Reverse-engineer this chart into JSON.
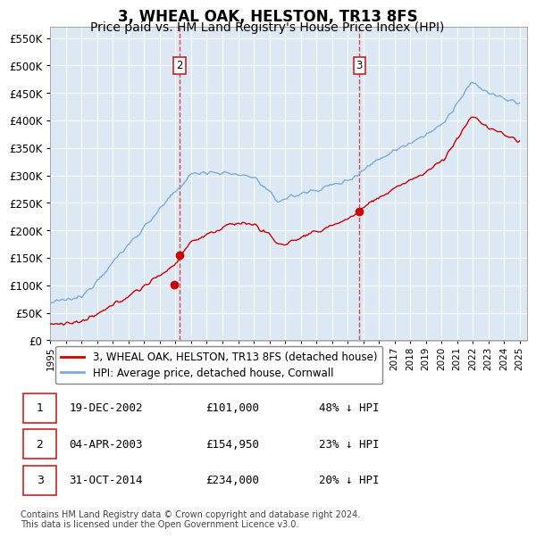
{
  "title": "3, WHEAL OAK, HELSTON, TR13 8FS",
  "subtitle": "Price paid vs. HM Land Registry's House Price Index (HPI)",
  "title_fontsize": 12,
  "subtitle_fontsize": 10,
  "hpi_color": "#7aabdb",
  "price_color": "#cc0000",
  "bg_color": "#dce9f5",
  "grid_color": "#ffffff",
  "ylim": [
    0,
    570000
  ],
  "yticks": [
    0,
    50000,
    100000,
    150000,
    200000,
    250000,
    300000,
    350000,
    400000,
    450000,
    500000,
    550000
  ],
  "sale1_t": 2002.92,
  "sale1_price": 101000,
  "sale2_t": 2003.25,
  "sale2_price": 154950,
  "sale3_t": 2014.75,
  "sale3_price": 234000,
  "legend_line1": "3, WHEAL OAK, HELSTON, TR13 8FS (detached house)",
  "legend_line2": "HPI: Average price, detached house, Cornwall",
  "table_rows": [
    [
      "1",
      "19-DEC-2002",
      "£101,000",
      "48% ↓ HPI"
    ],
    [
      "2",
      "04-APR-2003",
      "£154,950",
      "23% ↓ HPI"
    ],
    [
      "3",
      "31-OCT-2014",
      "£234,000",
      "20% ↓ HPI"
    ]
  ],
  "footer": "Contains HM Land Registry data © Crown copyright and database right 2024.\nThis data is licensed under the Open Government Licence v3.0."
}
